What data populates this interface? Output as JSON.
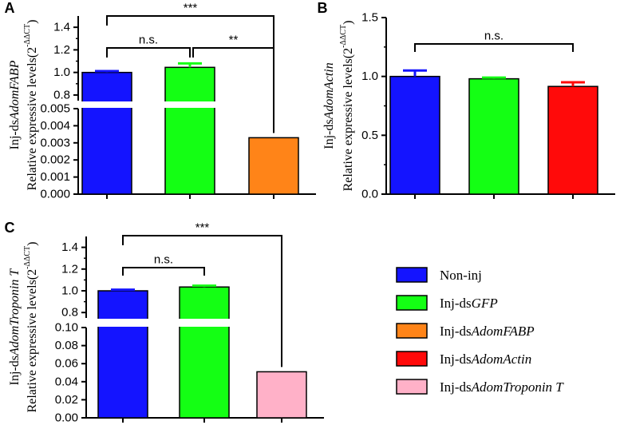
{
  "chart_data": [
    {
      "panel": "A",
      "type": "bar",
      "broken_axis": true,
      "ylabel_line1_prefix": "Inj-ds",
      "ylabel_line1_gene": "AdomFABP",
      "ylabel_line2": "Relative expressive levels(2",
      "ylabel_sup": "-ΔΔCT",
      "ylabel_close": ")",
      "upper_range": [
        0.75,
        1.5
      ],
      "upper_ticks": [
        "0.8",
        "1.0",
        "1.2",
        "1.4"
      ],
      "lower_range": [
        0,
        0.005
      ],
      "lower_ticks": [
        "0.000",
        "0.001",
        "0.002",
        "0.003",
        "0.004",
        "0.005"
      ],
      "categories": [
        "Non-inj",
        "Inj-dsGFP",
        "Inj-dsAdomFABP"
      ],
      "values": [
        1.0,
        1.045,
        0.0033
      ],
      "errors": [
        0.012,
        0.035,
        0
      ],
      "colors": [
        "#1414ff",
        "#14ff14",
        "#ff8418"
      ],
      "significance": [
        {
          "from": 0,
          "to": 1,
          "label": "n.s."
        },
        {
          "from": 1,
          "to": 2,
          "label": "**"
        },
        {
          "from": 0,
          "to": 2,
          "label": "***"
        }
      ]
    },
    {
      "panel": "B",
      "type": "bar",
      "broken_axis": false,
      "ylabel_line1_prefix": "Inj-ds",
      "ylabel_line1_gene": "AdomActin",
      "ylabel_line2": "Relative expressive levels(2",
      "ylabel_sup": "-ΔΔCT",
      "ylabel_close": ")",
      "ylim": [
        0,
        1.5
      ],
      "ticks": [
        "0.0",
        "0.5",
        "1.0",
        "1.5"
      ],
      "categories": [
        "Non-inj",
        "Inj-dsGFP",
        "Inj-dsAdomActin"
      ],
      "values": [
        1.0,
        0.98,
        0.915
      ],
      "errors": [
        0.05,
        0.01,
        0.035
      ],
      "colors": [
        "#1414ff",
        "#14ff14",
        "#ff0a0a"
      ],
      "significance": [
        {
          "from": 0,
          "to": 2,
          "label": "n.s."
        }
      ]
    },
    {
      "panel": "C",
      "type": "bar",
      "broken_axis": true,
      "ylabel_line1_prefix": "Inj-ds",
      "ylabel_line1_gene": "AdomTroponin T",
      "ylabel_line2": "Relative expressive levels(2",
      "ylabel_sup": "-ΔΔCT",
      "ylabel_close": ")",
      "upper_range": [
        0.75,
        1.5
      ],
      "upper_ticks": [
        "0.8",
        "1.0",
        "1.2",
        "1.4"
      ],
      "lower_range": [
        0,
        0.1
      ],
      "lower_ticks": [
        "0.00",
        "0.02",
        "0.04",
        "0.06",
        "0.08",
        "0.10"
      ],
      "categories": [
        "Non-inj",
        "Inj-dsGFP",
        "Inj-dsAdomTroponin T"
      ],
      "values": [
        1.0,
        1.035,
        0.051
      ],
      "errors": [
        0.01,
        0.012,
        0
      ],
      "colors": [
        "#1414ff",
        "#14ff14",
        "#ffb1c8"
      ],
      "significance": [
        {
          "from": 0,
          "to": 1,
          "label": "n.s."
        },
        {
          "from": 0,
          "to": 2,
          "label": "***"
        }
      ]
    }
  ],
  "legend": [
    {
      "prefix": "Non-inj",
      "italic": "",
      "color": "#1414ff"
    },
    {
      "prefix": "Inj-ds",
      "italic": "GFP",
      "color": "#14ff14"
    },
    {
      "prefix": "Inj-ds",
      "italic": "AdomFABP",
      "color": "#ff8418"
    },
    {
      "prefix": "Inj-ds",
      "italic": "AdomActin",
      "color": "#ff0a0a"
    },
    {
      "prefix": "Inj-ds",
      "italic": "AdomTroponin T",
      "color": "#ffb1c8"
    }
  ]
}
